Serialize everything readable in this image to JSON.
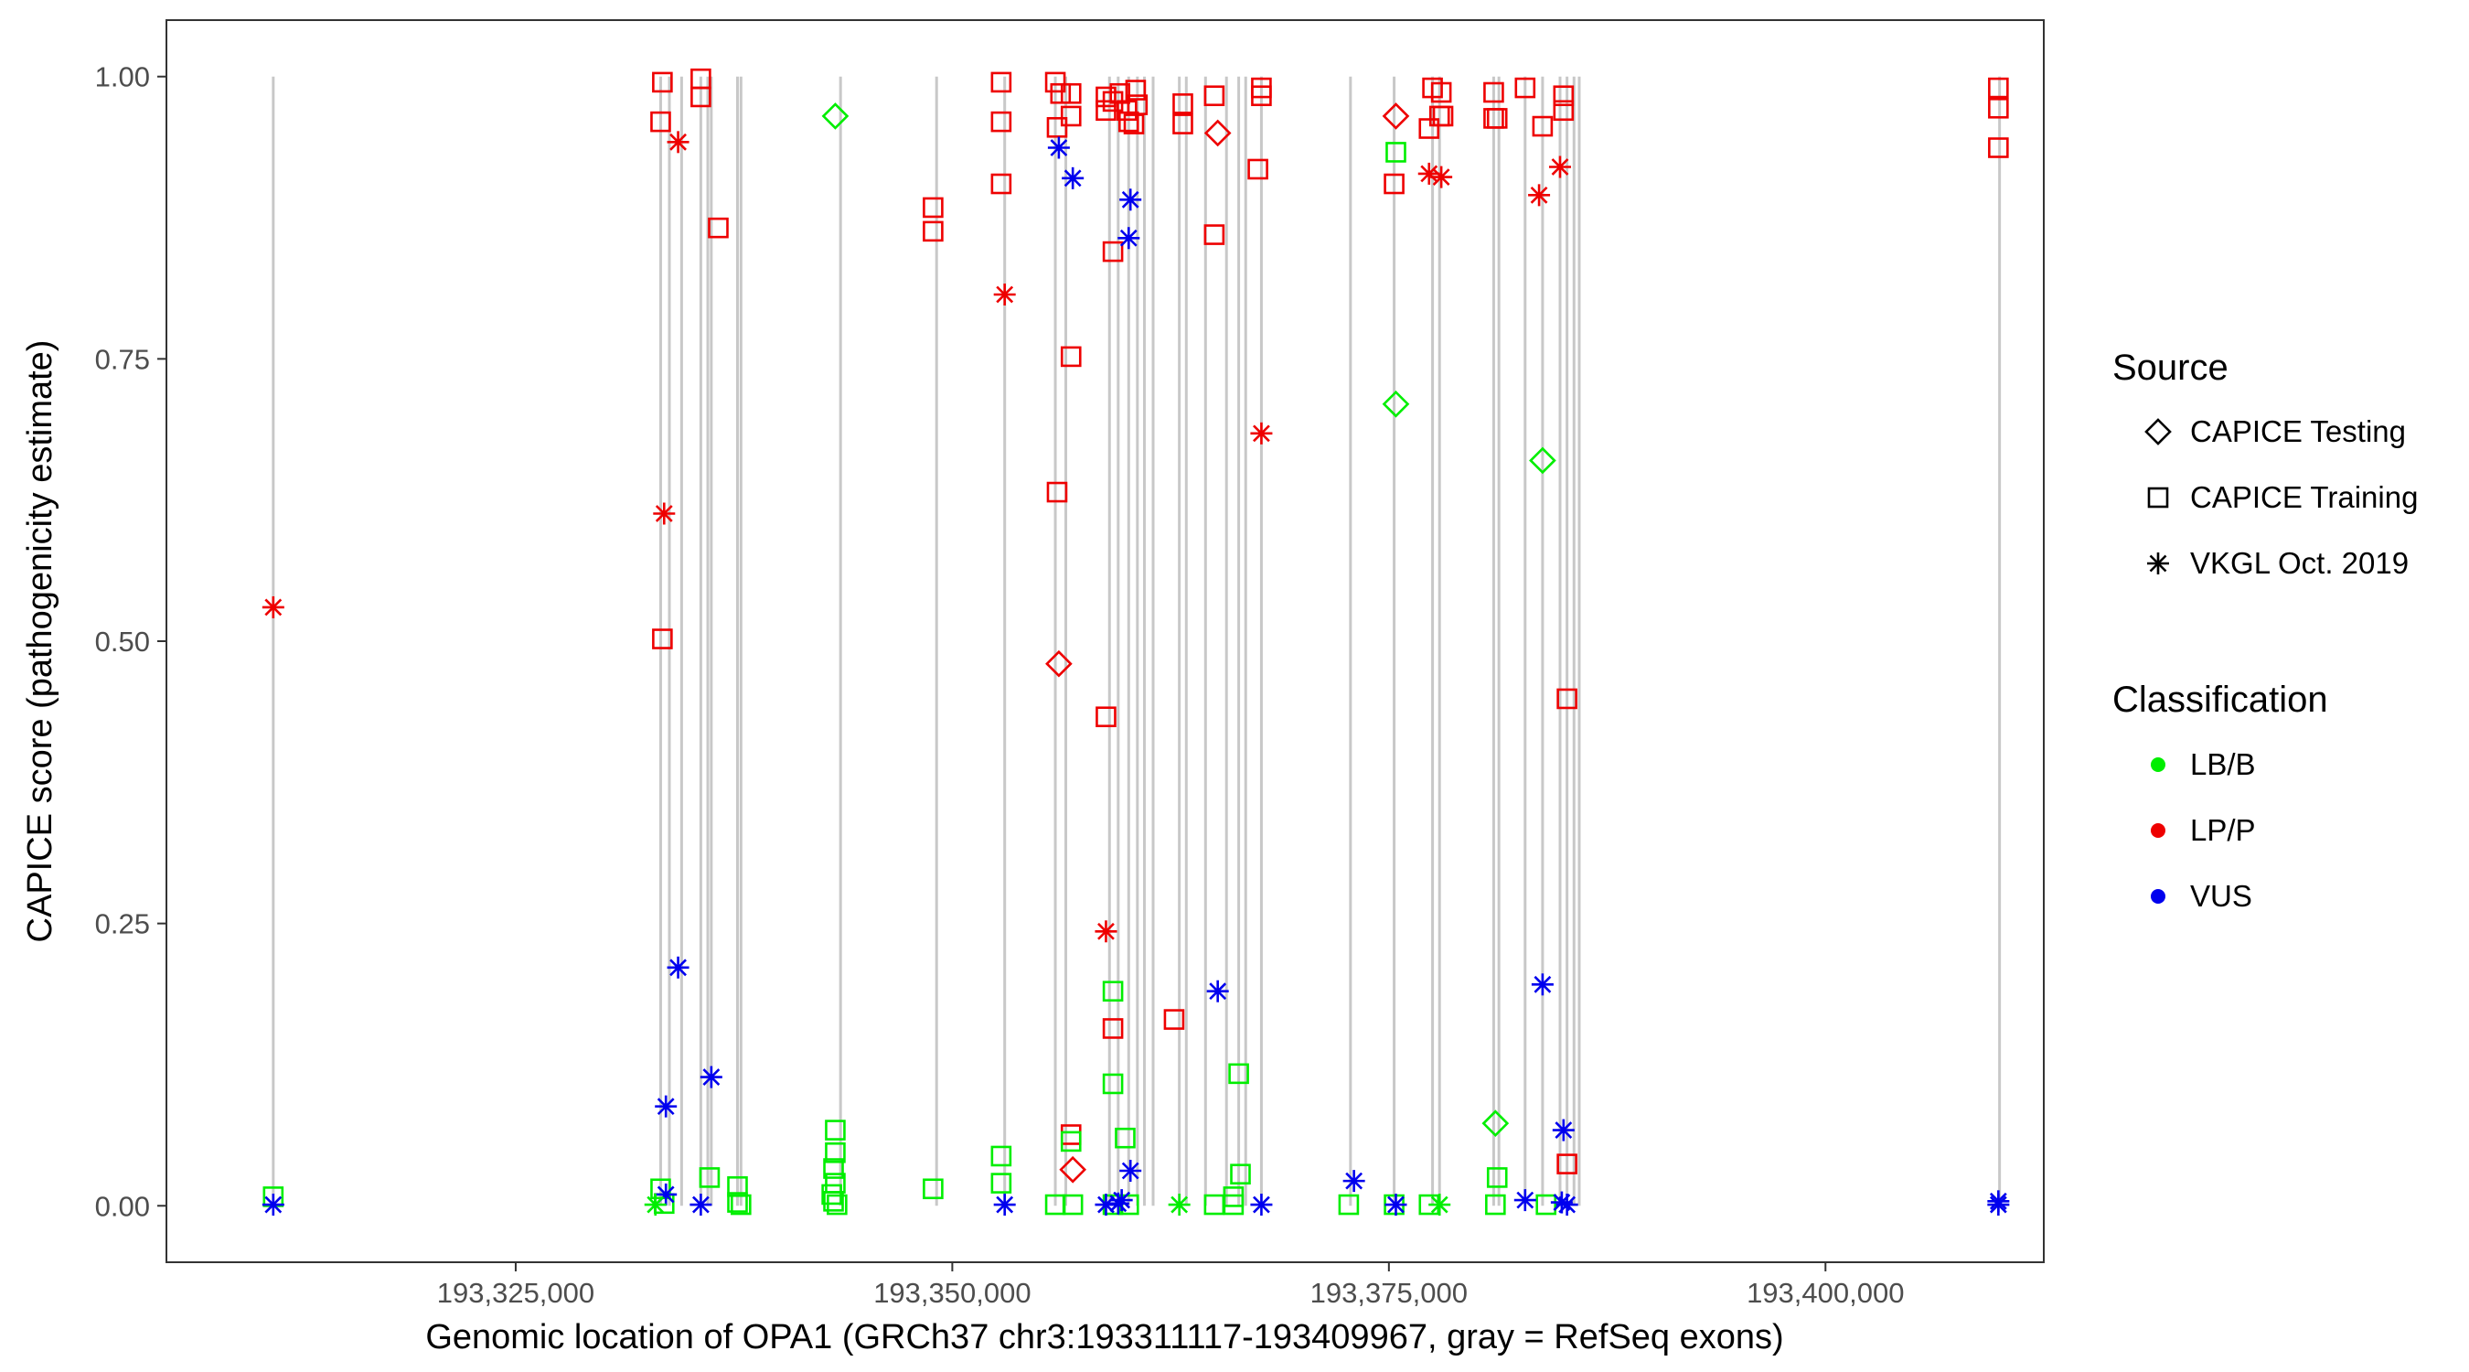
{
  "chart_data": {
    "type": "scatter",
    "xlabel": "Genomic location of OPA1 (GRCh37 chr3:193311117-193409967, gray = RefSeq exons)",
    "ylabel": "CAPICE score (pathogenicity estimate)",
    "xlim": [
      193305000,
      193412500
    ],
    "ylim": [
      -0.05,
      1.05
    ],
    "x_ticks": [
      193325000,
      193350000,
      193375000,
      193400000
    ],
    "x_tick_labels": [
      "193,325,000",
      "193,350,000",
      "193,375,000",
      "193,400,000"
    ],
    "y_ticks": [
      0,
      0.25,
      0.5,
      0.75,
      1
    ],
    "y_tick_labels": [
      "0.00",
      "0.25",
      "0.50",
      "0.75",
      "1.00"
    ],
    "grid": false,
    "legend_position": "right",
    "exons": [
      193311117,
      193333300,
      193333800,
      193334500,
      193335600,
      193336000,
      193336200,
      193337700,
      193337900,
      193343600,
      193349100,
      193353000,
      193355900,
      193356500,
      193359000,
      193359500,
      193360100,
      193360600,
      193361000,
      193361500,
      193363000,
      193363400,
      193364500,
      193365700,
      193366400,
      193366800,
      193367700,
      193372800,
      193375300,
      193377500,
      193377900,
      193381000,
      193381300,
      193382800,
      193383800,
      193384800,
      193385200,
      193385600,
      193385900,
      193409967
    ],
    "source_legend": {
      "title": "Source",
      "items": [
        {
          "name": "CAPICE Testing",
          "shape": "diamond"
        },
        {
          "name": "CAPICE Training",
          "shape": "square"
        },
        {
          "name": "VKGL Oct. 2019",
          "shape": "asterisk"
        }
      ]
    },
    "classification_legend": {
      "title": "Classification",
      "items": [
        {
          "name": "LB/B",
          "color": "#00ee00"
        },
        {
          "name": "LP/P",
          "color": "#ee0000"
        },
        {
          "name": "VUS",
          "color": "#0000ee"
        }
      ]
    },
    "series": [
      {
        "source": "CAPICE Testing",
        "points": [
          [
            193343300,
            0.965,
            "LB/B"
          ],
          [
            193356100,
            0.48,
            "LP/P"
          ],
          [
            193356900,
            0.032,
            "LP/P"
          ],
          [
            193365200,
            0.95,
            "LP/P"
          ],
          [
            193375400,
            0.965,
            "LP/P"
          ],
          [
            193375400,
            0.71,
            "LB/B"
          ],
          [
            193381100,
            0.073,
            "LB/B"
          ],
          [
            193383800,
            0.66,
            "LB/B"
          ]
        ]
      },
      {
        "source": "CAPICE Training",
        "points": [
          [
            193311117,
            0.008,
            "LB/B"
          ],
          [
            193333300,
            0.96,
            "LP/P"
          ],
          [
            193333400,
            0.995,
            "LP/P"
          ],
          [
            193333400,
            0.502,
            "LP/P"
          ],
          [
            193333300,
            0.015,
            "LB/B"
          ],
          [
            193333500,
            0.002,
            "LB/B"
          ],
          [
            193335600,
            0.998,
            "LP/P"
          ],
          [
            193335600,
            0.982,
            "LP/P"
          ],
          [
            193336600,
            0.866,
            "LP/P"
          ],
          [
            193336100,
            0.025,
            "LB/B"
          ],
          [
            193337700,
            0.017,
            "LB/B"
          ],
          [
            193337700,
            0.003,
            "LB/B"
          ],
          [
            193337900,
            0.001,
            "LB/B"
          ],
          [
            193343300,
            0.067,
            "LB/B"
          ],
          [
            193343300,
            0.047,
            "LB/B"
          ],
          [
            193343200,
            0.033,
            "LB/B"
          ],
          [
            193343300,
            0.02,
            "LB/B"
          ],
          [
            193343100,
            0.01,
            "LB/B"
          ],
          [
            193343200,
            0.004,
            "LB/B"
          ],
          [
            193343400,
            0.001,
            "LB/B"
          ],
          [
            193348900,
            0.884,
            "LP/P"
          ],
          [
            193348900,
            0.863,
            "LP/P"
          ],
          [
            193348900,
            0.015,
            "LB/B"
          ],
          [
            193352800,
            0.995,
            "LP/P"
          ],
          [
            193352800,
            0.96,
            "LP/P"
          ],
          [
            193352800,
            0.905,
            "LP/P"
          ],
          [
            193352800,
            0.044,
            "LB/B"
          ],
          [
            193352800,
            0.02,
            "LB/B"
          ],
          [
            193355900,
            0.995,
            "LP/P"
          ],
          [
            193356200,
            0.985,
            "LP/P"
          ],
          [
            193356000,
            0.955,
            "LP/P"
          ],
          [
            193356000,
            0.632,
            "LP/P"
          ],
          [
            193355900,
            0.001,
            "LB/B"
          ],
          [
            193356800,
            0.985,
            "LP/P"
          ],
          [
            193356800,
            0.965,
            "LP/P"
          ],
          [
            193356800,
            0.752,
            "LP/P"
          ],
          [
            193356800,
            0.063,
            "LP/P"
          ],
          [
            193356800,
            0.057,
            "LB/B"
          ],
          [
            193356900,
            0.001,
            "LB/B"
          ],
          [
            193358800,
            0.982,
            "LP/P"
          ],
          [
            193358800,
            0.97,
            "LP/P"
          ],
          [
            193359200,
            0.978,
            "LP/P"
          ],
          [
            193359200,
            0.845,
            "LP/P"
          ],
          [
            193358800,
            0.433,
            "LP/P"
          ],
          [
            193359200,
            0.157,
            "LP/P"
          ],
          [
            193359200,
            0.19,
            "LB/B"
          ],
          [
            193359200,
            0.108,
            "LB/B"
          ],
          [
            193359200,
            0.001,
            "LB/B"
          ],
          [
            193359600,
            0.985,
            "LP/P"
          ],
          [
            193360000,
            0.97,
            "LP/P"
          ],
          [
            193360100,
            0.96,
            "LP/P"
          ],
          [
            193360500,
            0.988,
            "LP/P"
          ],
          [
            193360600,
            0.975,
            "LP/P"
          ],
          [
            193360400,
            0.958,
            "LP/P"
          ],
          [
            193359900,
            0.06,
            "LB/B"
          ],
          [
            193360100,
            0.001,
            "LB/B"
          ],
          [
            193363200,
            0.976,
            "LP/P"
          ],
          [
            193363200,
            0.958,
            "LP/P"
          ],
          [
            193362700,
            0.165,
            "LP/P"
          ],
          [
            193365000,
            0.983,
            "LP/P"
          ],
          [
            193365000,
            0.86,
            "LP/P"
          ],
          [
            193365000,
            0.001,
            "LB/B"
          ],
          [
            193366400,
            0.117,
            "LB/B"
          ],
          [
            193366500,
            0.028,
            "LB/B"
          ],
          [
            193366100,
            0.008,
            "LB/B"
          ],
          [
            193366100,
            0.001,
            "LB/B"
          ],
          [
            193367700,
            0.99,
            "LP/P"
          ],
          [
            193367700,
            0.983,
            "LP/P"
          ],
          [
            193367500,
            0.918,
            "LP/P"
          ],
          [
            193372700,
            0.001,
            "LB/B"
          ],
          [
            193375400,
            0.933,
            "LB/B"
          ],
          [
            193375300,
            0.905,
            "LP/P"
          ],
          [
            193375300,
            0.001,
            "LB/B"
          ],
          [
            193377500,
            0.99,
            "LP/P"
          ],
          [
            193377300,
            0.954,
            "LP/P"
          ],
          [
            193378000,
            0.986,
            "LP/P"
          ],
          [
            193377900,
            0.965,
            "LP/P"
          ],
          [
            193378100,
            0.965,
            "LP/P"
          ],
          [
            193377300,
            0.001,
            "LB/B"
          ],
          [
            193381000,
            0.986,
            "LP/P"
          ],
          [
            193381000,
            0.963,
            "LP/P"
          ],
          [
            193381200,
            0.963,
            "LP/P"
          ],
          [
            193381200,
            0.025,
            "LB/B"
          ],
          [
            193381100,
            0.001,
            "LB/B"
          ],
          [
            193382800,
            0.99,
            "LP/P"
          ],
          [
            193383800,
            0.956,
            "LP/P"
          ],
          [
            193385000,
            0.983,
            "LP/P"
          ],
          [
            193385000,
            0.97,
            "LP/P"
          ],
          [
            193385200,
            0.449,
            "LP/P"
          ],
          [
            193385200,
            0.037,
            "LP/P"
          ],
          [
            193384000,
            0.001,
            "LB/B"
          ],
          [
            193409900,
            0.99,
            "LP/P"
          ],
          [
            193409900,
            0.972,
            "LP/P"
          ],
          [
            193409900,
            0.937,
            "LP/P"
          ]
        ]
      },
      {
        "source": "VKGL Oct. 2019",
        "points": [
          [
            193311117,
            0.53,
            "LP/P"
          ],
          [
            193311117,
            0.001,
            "VUS"
          ],
          [
            193333500,
            0.613,
            "LP/P"
          ],
          [
            193334300,
            0.942,
            "LP/P"
          ],
          [
            193334300,
            0.211,
            "VUS"
          ],
          [
            193333600,
            0.088,
            "VUS"
          ],
          [
            193333600,
            0.01,
            "VUS"
          ],
          [
            193333000,
            0.001,
            "LB/B"
          ],
          [
            193336200,
            0.114,
            "VUS"
          ],
          [
            193335600,
            0.001,
            "VUS"
          ],
          [
            193353000,
            0.807,
            "LP/P"
          ],
          [
            193353000,
            0.001,
            "VUS"
          ],
          [
            193356100,
            0.937,
            "VUS"
          ],
          [
            193356900,
            0.91,
            "VUS"
          ],
          [
            193358800,
            0.243,
            "LP/P"
          ],
          [
            193358800,
            0.001,
            "VUS"
          ],
          [
            193360200,
            0.891,
            "VUS"
          ],
          [
            193360100,
            0.857,
            "VUS"
          ],
          [
            193360200,
            0.031,
            "VUS"
          ],
          [
            193359700,
            0.005,
            "VUS"
          ],
          [
            193359500,
            0.002,
            "VUS"
          ],
          [
            193363000,
            0.001,
            "LB/B"
          ],
          [
            193365200,
            0.19,
            "VUS"
          ],
          [
            193367700,
            0.684,
            "LP/P"
          ],
          [
            193367700,
            0.001,
            "VUS"
          ],
          [
            193373000,
            0.022,
            "VUS"
          ],
          [
            193375400,
            0.001,
            "VUS"
          ],
          [
            193377300,
            0.914,
            "LP/P"
          ],
          [
            193378000,
            0.911,
            "LP/P"
          ],
          [
            193377900,
            0.001,
            "LB/B"
          ],
          [
            193382800,
            0.005,
            "VUS"
          ],
          [
            193383600,
            0.895,
            "LP/P"
          ],
          [
            193384800,
            0.92,
            "LP/P"
          ],
          [
            193383800,
            0.196,
            "VUS"
          ],
          [
            193385000,
            0.067,
            "VUS"
          ],
          [
            193384900,
            0.003,
            "VUS"
          ],
          [
            193385200,
            0.001,
            "VUS"
          ],
          [
            193409900,
            0.004,
            "VUS"
          ],
          [
            193409900,
            0.001,
            "VUS"
          ]
        ]
      }
    ]
  }
}
